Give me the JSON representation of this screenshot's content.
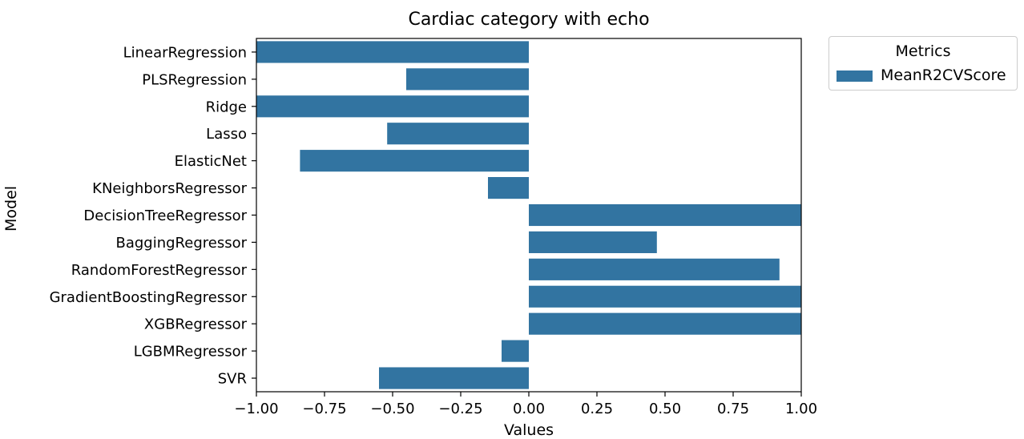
{
  "chart_data": {
    "type": "bar",
    "orientation": "horizontal",
    "title": "Cardiac category with echo",
    "xlabel": "Values",
    "ylabel": "Model",
    "xlim": [
      -1.0,
      1.0
    ],
    "xticks": [
      "−1.00",
      "−0.75",
      "−0.50",
      "−0.25",
      "0.00",
      "0.25",
      "0.50",
      "0.75",
      "1.00"
    ],
    "xtick_values": [
      -1.0,
      -0.75,
      -0.5,
      -0.25,
      0.0,
      0.25,
      0.5,
      0.75,
      1.0
    ],
    "categories": [
      "LinearRegression",
      "PLSRegression",
      "Ridge",
      "Lasso",
      "ElasticNet",
      "KNeighborsRegressor",
      "DecisionTreeRegressor",
      "BaggingRegressor",
      "RandomForestRegressor",
      "GradientBoostingRegressor",
      "XGBRegressor",
      "LGBMRegressor",
      "SVR"
    ],
    "series": [
      {
        "name": "MeanR2CVScore",
        "color": "#3274a1",
        "values": [
          -1.0,
          -0.45,
          -1.0,
          -0.52,
          -0.84,
          -0.15,
          1.0,
          0.47,
          0.92,
          1.0,
          1.0,
          -0.1,
          -0.55
        ]
      }
    ],
    "legend": {
      "title": "Metrics",
      "placement": "outside-top-right"
    },
    "grid": false
  }
}
